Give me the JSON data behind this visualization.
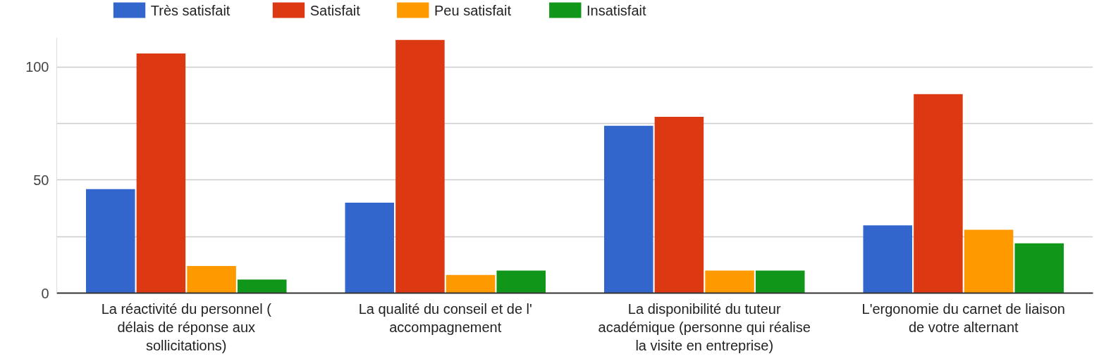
{
  "chart_data": {
    "type": "bar",
    "categories": [
      "La réactivité du personnel ( délais de réponse aux sollicitations)",
      "La qualité du conseil et de l' accompagnement",
      "La disponibilité du tuteur académique (personne qui réalise la visite en entreprise)",
      "L'ergonomie du carnet de liaison de votre alternant"
    ],
    "series": [
      {
        "name": "Très satisfait",
        "color": "#3366cc",
        "values": [
          46,
          40,
          74,
          30
        ]
      },
      {
        "name": "Satisfait",
        "color": "#dc3912",
        "values": [
          106,
          112,
          78,
          88
        ]
      },
      {
        "name": "Peu satisfait",
        "color": "#ff9900",
        "values": [
          12,
          8,
          10,
          28
        ]
      },
      {
        "name": "Insatisfait",
        "color": "#109618",
        "values": [
          6,
          10,
          10,
          22
        ]
      }
    ],
    "ylim": [
      0,
      113
    ],
    "yticks": [
      0,
      {
        "value": 25,
        "label": null
      },
      50,
      {
        "value": 75,
        "label": null
      },
      100
    ],
    "grid": "y",
    "legend": "top left"
  }
}
